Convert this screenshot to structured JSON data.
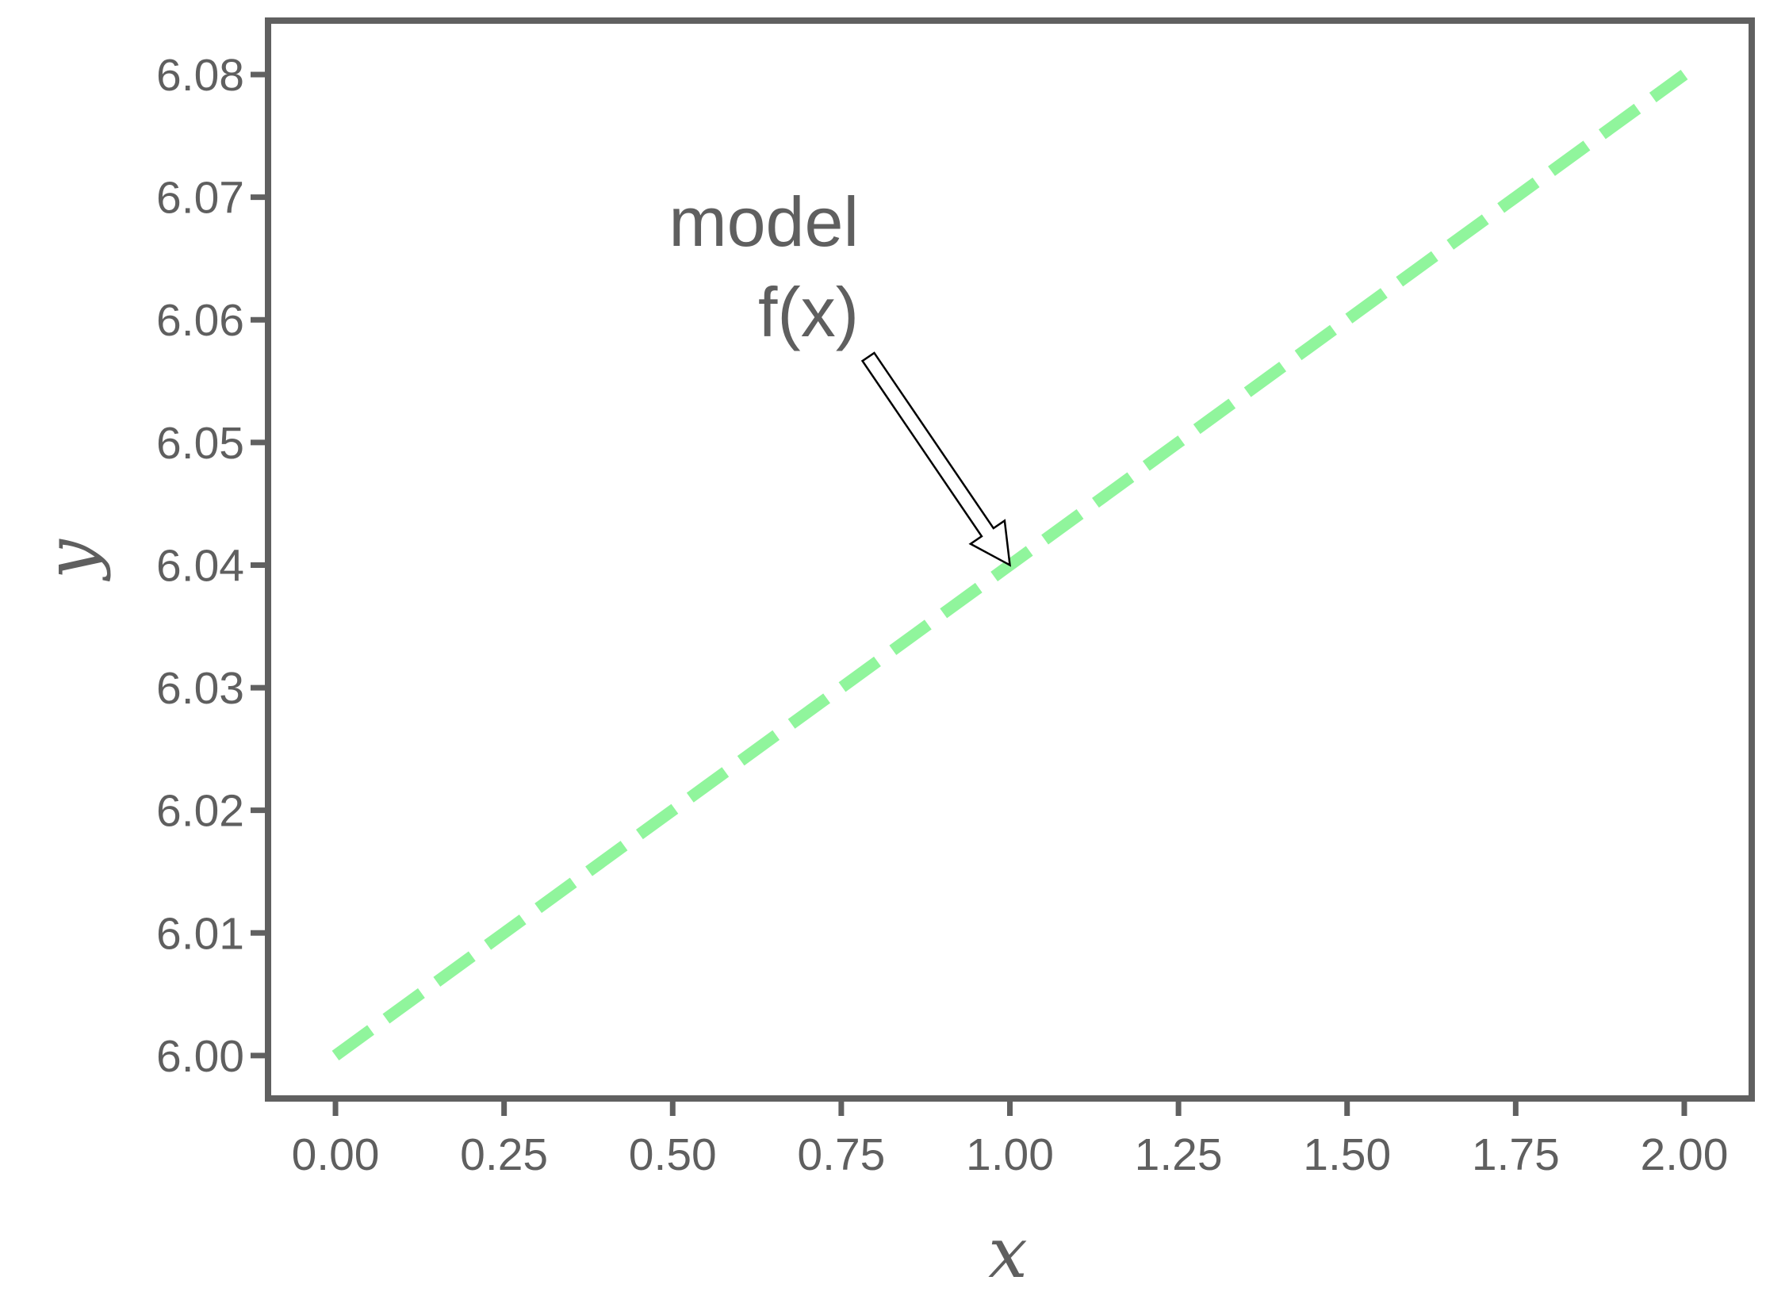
{
  "chart_data": {
    "type": "line",
    "x": [
      0,
      0.25,
      0.5,
      0.75,
      1,
      1.25,
      1.5,
      1.75,
      2
    ],
    "series": [
      {
        "name": "f(x)",
        "color": "#90f59c",
        "values": [
          6.0,
          6.01,
          6.02,
          6.03,
          6.04,
          6.05,
          6.06,
          6.07,
          6.08
        ]
      }
    ],
    "xlabel": "x",
    "ylabel": "y",
    "xlim": [
      -0.1,
      2.1
    ],
    "ylim": [
      5.9965,
      6.0844
    ],
    "xticks": [
      {
        "value": 0,
        "label": "0.00"
      },
      0.25,
      {
        "value": 0.5,
        "label": "0.50"
      },
      0.75,
      {
        "value": 1,
        "label": "1.00"
      },
      1.25,
      {
        "value": 1.5,
        "label": "1.50"
      },
      1.75,
      {
        "value": 2,
        "label": "2.00"
      }
    ],
    "yticks": [
      {
        "value": 6,
        "label": "6.00"
      },
      6.01,
      6.02,
      6.03,
      6.04,
      6.05,
      6.06,
      6.07,
      6.08
    ],
    "annotation": {
      "lines": [
        "model",
        "f(x)"
      ],
      "xy": [
        1,
        6.04
      ]
    },
    "grid": false
  }
}
